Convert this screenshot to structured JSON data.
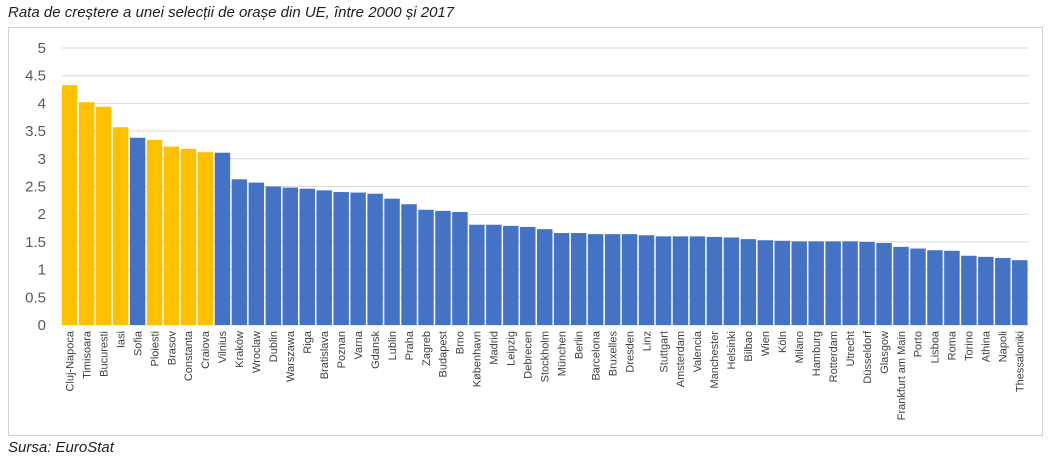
{
  "chart_data": {
    "type": "bar",
    "title": "Rata de creștere a unei selecții de orașe din UE, între 2000 și 2017",
    "source": "Sursa: EuroStat",
    "xlabel": "",
    "ylabel": "",
    "ylim": [
      0,
      5
    ],
    "yticks": [
      "0",
      "0.5",
      "1",
      "1.5",
      "2",
      "2.5",
      "3",
      "3.5",
      "4",
      "4.5",
      "5"
    ],
    "grid": true,
    "colors": {
      "highlight": "#FFC000",
      "default": "#4472C4",
      "grid": "#d9d9d9"
    },
    "categories": [
      "Cluj-Napoca",
      "Timisoara",
      "Bucuresti",
      "Iasi",
      "Sofia",
      "Ploiesti",
      "Brasov",
      "Constanta",
      "Craiova",
      "Vilnius",
      "Kraków",
      "Wroclaw",
      "Dublin",
      "Warszawa",
      "Riga",
      "Bratislava",
      "Poznan",
      "Varna",
      "Gdansk",
      "Lublin",
      "Praha",
      "Zagreb",
      "Budapest",
      "Brno",
      "København",
      "Madrid",
      "Leipzig",
      "Debrecen",
      "Stockholm",
      "München",
      "Berlin",
      "Barcelona",
      "Bruxelles",
      "Dresden",
      "Linz",
      "Stuttgart",
      "Amsterdam",
      "Valencia",
      "Manchester",
      "Helsinki",
      "Bilbao",
      "Wien",
      "Köln",
      "Milano",
      "Hamburg",
      "Rotterdam",
      "Utrecht",
      "Düsseldorf",
      "Glasgow",
      "Frankfurt am Main",
      "Porto",
      "Lisboa",
      "Roma",
      "Torino",
      "Athina",
      "Napoli",
      "Thessaloniki"
    ],
    "values": [
      4.33,
      4.02,
      3.94,
      3.57,
      3.38,
      3.34,
      3.22,
      3.18,
      3.12,
      3.11,
      2.63,
      2.57,
      2.5,
      2.48,
      2.46,
      2.43,
      2.4,
      2.39,
      2.37,
      2.28,
      2.18,
      2.08,
      2.06,
      2.04,
      1.81,
      1.81,
      1.79,
      1.77,
      1.73,
      1.66,
      1.66,
      1.64,
      1.64,
      1.64,
      1.62,
      1.6,
      1.6,
      1.6,
      1.59,
      1.58,
      1.55,
      1.53,
      1.52,
      1.51,
      1.51,
      1.51,
      1.51,
      1.5,
      1.48,
      1.41,
      1.38,
      1.35,
      1.34,
      1.25,
      1.23,
      1.21,
      1.17
    ],
    "highlighted": [
      "Cluj-Napoca",
      "Timisoara",
      "Bucuresti",
      "Iasi",
      "Ploiesti",
      "Brasov",
      "Constanta",
      "Craiova"
    ]
  }
}
